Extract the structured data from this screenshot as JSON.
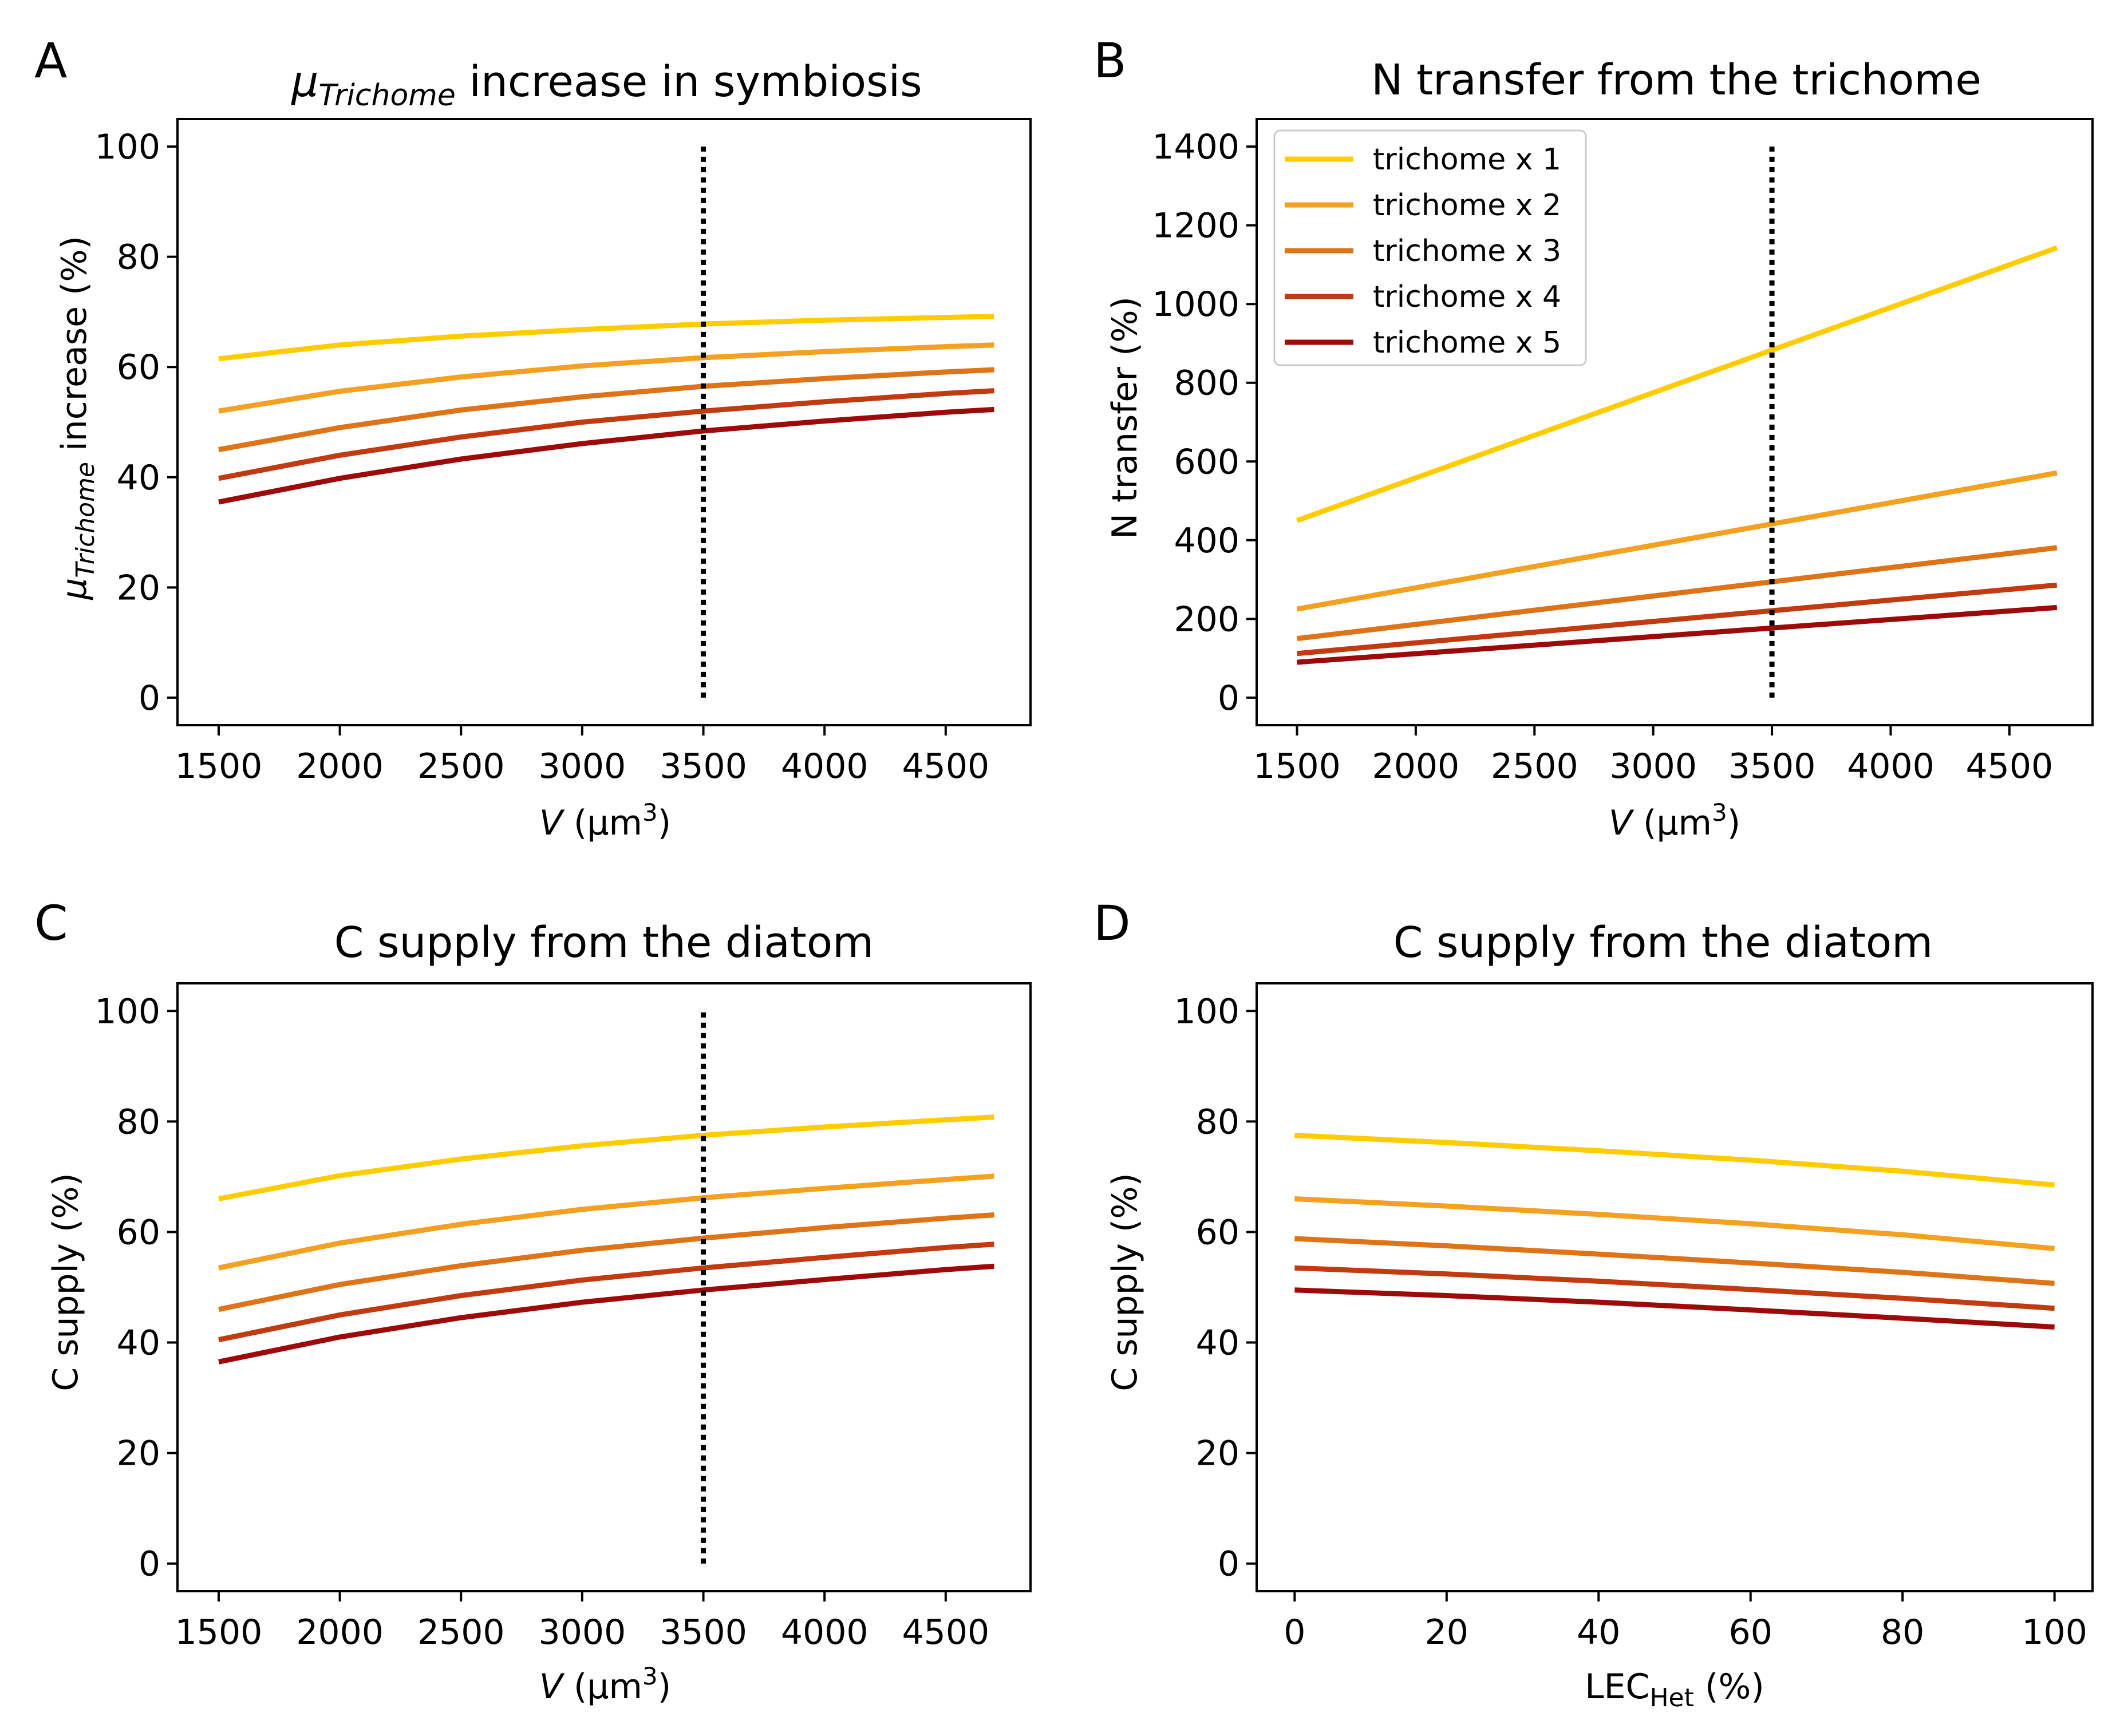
{
  "colors": {
    "series": [
      "#FFCC00",
      "#F4A020",
      "#DE7417",
      "#C23A10",
      "#9E0A0A"
    ],
    "background": "#ffffff",
    "axis": "#000000",
    "reference_line": "#000000"
  },
  "panels": [
    {
      "letter": "A",
      "title_symbol": "μ",
      "title_sub": "Trichome",
      "title_rest": " increase in symbiosis",
      "xlabel_var": "V",
      "xlabel_unit": " (μm",
      "xlabel_sup": "3",
      "xlabel_close": ")",
      "ylabel_symbol": "μ",
      "ylabel_sub": "Trichome",
      "ylabel_rest": " increase (%)",
      "xticks": [
        "1500",
        "2000",
        "2500",
        "3000",
        "3500",
        "4000",
        "4500"
      ],
      "yticks": [
        "0",
        "20",
        "40",
        "60",
        "80",
        "100"
      ]
    },
    {
      "letter": "B",
      "title": "N transfer from the trichome",
      "xlabel_var": "V",
      "xlabel_unit": " (μm",
      "xlabel_sup": "3",
      "xlabel_close": ")",
      "ylabel": "N transfer (%)",
      "xticks": [
        "1500",
        "2000",
        "2500",
        "3000",
        "3500",
        "4000",
        "4500"
      ],
      "yticks": [
        "0",
        "200",
        "400",
        "600",
        "800",
        "1000",
        "1200",
        "1400"
      ],
      "legend": [
        "trichome x 1",
        "trichome x 2",
        "trichome x 3",
        "trichome x 4",
        "trichome x 5"
      ]
    },
    {
      "letter": "C",
      "title": "C supply from the diatom",
      "xlabel_var": "V",
      "xlabel_unit": " (μm",
      "xlabel_sup": "3",
      "xlabel_close": ")",
      "ylabel": "C supply (%)",
      "xticks": [
        "1500",
        "2000",
        "2500",
        "3000",
        "3500",
        "4000",
        "4500"
      ],
      "yticks": [
        "0",
        "20",
        "40",
        "60",
        "80",
        "100"
      ]
    },
    {
      "letter": "D",
      "title": "C supply from the diatom",
      "xlabel_main": "LEC",
      "xlabel_sub": "Het",
      "xlabel_rest": " (%)",
      "ylabel": "C supply (%)",
      "xticks": [
        "0",
        "20",
        "40",
        "60",
        "80",
        "100"
      ],
      "yticks": [
        "0",
        "20",
        "40",
        "60",
        "80",
        "100"
      ]
    }
  ],
  "chart_data": [
    {
      "panel": "A",
      "type": "line",
      "title": "μTrichome increase in symbiosis",
      "xlabel": "V (μm3)",
      "ylabel": "μTrichome increase (%)",
      "xlim": [
        1330,
        4850
      ],
      "ylim": [
        -5,
        105
      ],
      "x": [
        1500,
        2000,
        2500,
        3000,
        3500,
        4000,
        4500,
        4700
      ],
      "reference_x": 3500,
      "reference_y": [
        0,
        100
      ],
      "series": [
        {
          "name": "trichome x 1",
          "values": [
            61.5,
            64.0,
            65.6,
            66.8,
            67.8,
            68.5,
            69.0,
            69.2
          ]
        },
        {
          "name": "trichome x 2",
          "values": [
            52.0,
            55.6,
            58.2,
            60.2,
            61.7,
            62.8,
            63.7,
            64.0
          ]
        },
        {
          "name": "trichome x 3",
          "values": [
            45.0,
            49.0,
            52.2,
            54.6,
            56.5,
            57.9,
            59.1,
            59.5
          ]
        },
        {
          "name": "trichome x 4",
          "values": [
            39.8,
            44.0,
            47.3,
            50.0,
            52.0,
            53.7,
            55.2,
            55.7
          ]
        },
        {
          "name": "trichome x 5",
          "values": [
            35.5,
            39.8,
            43.3,
            46.1,
            48.4,
            50.2,
            51.8,
            52.3
          ]
        }
      ]
    },
    {
      "panel": "B",
      "type": "line",
      "title": "N transfer from the trichome",
      "xlabel": "V (μm3)",
      "ylabel": "N transfer (%)",
      "xlim": [
        1330,
        4850
      ],
      "ylim": [
        -70,
        1470
      ],
      "x": [
        1500,
        4700
      ],
      "reference_x": 3500,
      "reference_y": [
        0,
        1400
      ],
      "legend_position": "top-left",
      "series": [
        {
          "name": "trichome x 1",
          "values": [
            450,
            1143
          ]
        },
        {
          "name": "trichome x 2",
          "values": [
            225,
            571
          ]
        },
        {
          "name": "trichome x 3",
          "values": [
            150,
            381
          ]
        },
        {
          "name": "trichome x 4",
          "values": [
            112,
            286
          ]
        },
        {
          "name": "trichome x 5",
          "values": [
            90,
            229
          ]
        }
      ]
    },
    {
      "panel": "C",
      "type": "line",
      "title": "C supply from the diatom",
      "xlabel": "V (μm3)",
      "ylabel": "C supply (%)",
      "xlim": [
        1330,
        4850
      ],
      "ylim": [
        -5,
        105
      ],
      "x": [
        1500,
        2000,
        2500,
        3000,
        3500,
        4000,
        4500,
        4700
      ],
      "reference_x": 3500,
      "reference_y": [
        0,
        100
      ],
      "series": [
        {
          "name": "trichome x 1",
          "values": [
            66.0,
            70.2,
            73.2,
            75.6,
            77.5,
            79.0,
            80.3,
            80.8
          ]
        },
        {
          "name": "trichome x 2",
          "values": [
            53.5,
            58.0,
            61.4,
            64.1,
            66.2,
            67.9,
            69.5,
            70.1
          ]
        },
        {
          "name": "trichome x 3",
          "values": [
            46.0,
            50.5,
            53.9,
            56.7,
            58.9,
            60.8,
            62.5,
            63.1
          ]
        },
        {
          "name": "trichome x 4",
          "values": [
            40.5,
            45.0,
            48.5,
            51.3,
            53.5,
            55.4,
            57.2,
            57.8
          ]
        },
        {
          "name": "trichome x 5",
          "values": [
            36.5,
            41.0,
            44.5,
            47.3,
            49.5,
            51.4,
            53.2,
            53.8
          ]
        }
      ]
    },
    {
      "panel": "D",
      "type": "line",
      "title": "C supply from the diatom",
      "xlabel": "LECHet (%)",
      "ylabel": "C supply (%)",
      "xlim": [
        -5,
        105
      ],
      "ylim": [
        -5,
        105
      ],
      "x": [
        0,
        20,
        40,
        60,
        80,
        100
      ],
      "series": [
        {
          "name": "trichome x 1",
          "values": [
            77.5,
            76.2,
            74.7,
            73.0,
            71.0,
            68.5
          ]
        },
        {
          "name": "trichome x 2",
          "values": [
            66.0,
            64.7,
            63.2,
            61.5,
            59.5,
            57.0
          ]
        },
        {
          "name": "trichome x 3",
          "values": [
            58.8,
            57.5,
            56.0,
            54.4,
            52.7,
            50.7
          ]
        },
        {
          "name": "trichome x 4",
          "values": [
            53.5,
            52.4,
            51.1,
            49.6,
            48.0,
            46.2
          ]
        },
        {
          "name": "trichome x 5",
          "values": [
            49.5,
            48.5,
            47.3,
            45.9,
            44.4,
            42.8
          ]
        }
      ]
    }
  ]
}
